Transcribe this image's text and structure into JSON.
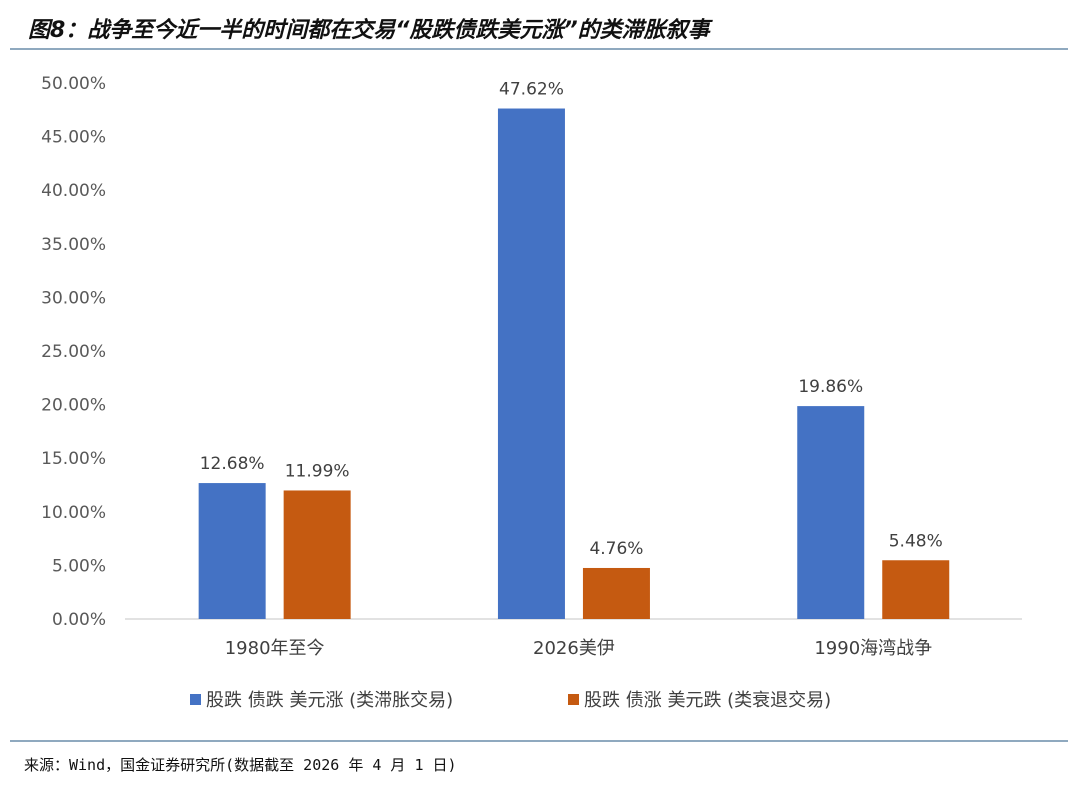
{
  "title": "图8：战争至今近一半的时间都在交易“股跌债跌美元涨”的类滞胀叙事",
  "source": "来源：Wind，国金证券研究所(数据截至 2026 年 4 月 1 日)",
  "chart_data": {
    "type": "bar",
    "categories": [
      "1980年至今",
      "2026美伊",
      "1990海湾战争"
    ],
    "series": [
      {
        "name": "股跌 债跌 美元涨 (类滞胀交易)",
        "values": [
          12.68,
          47.62,
          19.86
        ],
        "color": "#4472c4"
      },
      {
        "name": "股跌 债涨 美元跌 (类衰退交易)",
        "values": [
          11.99,
          4.76,
          5.48
        ],
        "color": "#c55a11"
      }
    ],
    "ylim": [
      0,
      50
    ],
    "yticks": [
      "0.00%",
      "5.00%",
      "10.00%",
      "15.00%",
      "20.00%",
      "25.00%",
      "30.00%",
      "35.00%",
      "40.00%",
      "45.00%",
      "50.00%"
    ],
    "data_labels": [
      [
        "12.68%",
        "47.62%",
        "19.86%"
      ],
      [
        "11.99%",
        "4.76%",
        "5.48%"
      ]
    ],
    "grid": false,
    "legend": "bottom"
  }
}
